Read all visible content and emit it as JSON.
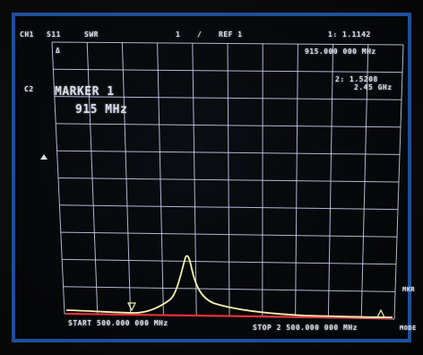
{
  "header": {
    "channel": "CH1",
    "parameter": "S11",
    "format": "SWR",
    "scale": "1",
    "slash": "/",
    "reference": "REF 1",
    "active_marker_value": "1: 1.1142",
    "active_marker_freq": "915.000 000 MHz"
  },
  "side_labels": {
    "c2": "C2",
    "delta": "Δ",
    "mkr": "MKR",
    "mode": "MODE"
  },
  "marker_readout": {
    "label": "MARKER 1",
    "freq": "915 MHz"
  },
  "marker2_readout": {
    "value": "2: 1.5208",
    "freq": "2.45 GHz"
  },
  "footer": {
    "start": "START  500.000 000 MHz",
    "stop": "STOP 2 500.000 000 MHz"
  },
  "colors": {
    "grid": "#cdd6f2",
    "trace": "#f2efb0",
    "reference_line": "#e0303a",
    "frame": "#1d4f9e"
  }
}
